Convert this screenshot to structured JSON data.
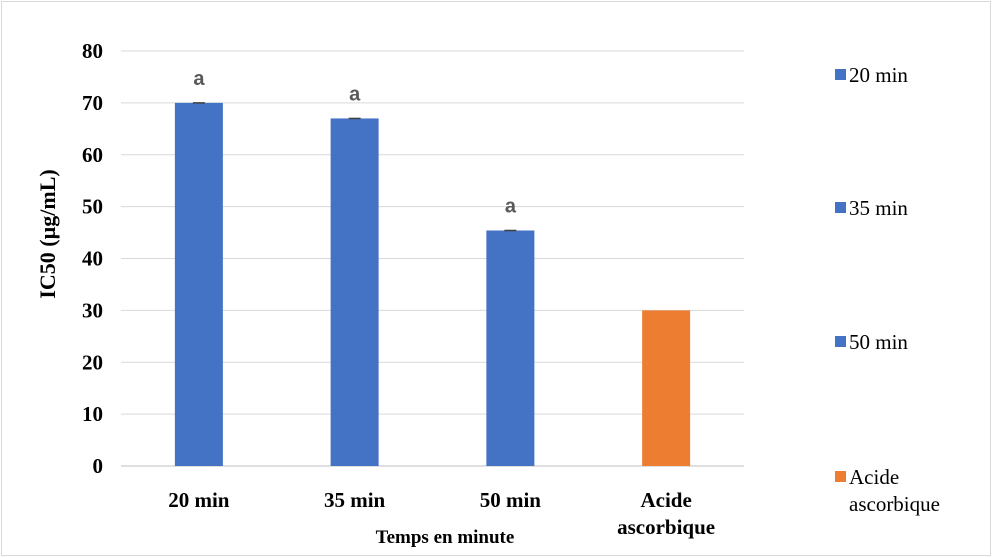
{
  "chart_data": {
    "type": "bar",
    "categories": [
      "20 min",
      "35 min",
      "50 min",
      "Acide ascorbique"
    ],
    "category_lines": [
      [
        "20 min"
      ],
      [
        "35 min"
      ],
      [
        "50 min"
      ],
      [
        "Acide",
        "ascorbique"
      ]
    ],
    "values": [
      70,
      67,
      45.4,
      30
    ],
    "errors": [
      0.1,
      0.1,
      0.1,
      0
    ],
    "bar_colors": [
      "#4472c4",
      "#4472c4",
      "#4472c4",
      "#ed7d31"
    ],
    "annotations": [
      "a",
      "a",
      "a",
      ""
    ],
    "title": "",
    "xlabel": "Temps en minute",
    "ylabel": "IC50 (µg/mL)",
    "ylim": [
      0,
      80
    ],
    "yticks": [
      0,
      10,
      20,
      30,
      40,
      50,
      60,
      70,
      80
    ],
    "grid": true,
    "legend_position": "right",
    "legend": [
      {
        "label": "20 min",
        "lines": [
          "20 min"
        ],
        "color": "#4472c4"
      },
      {
        "label": "35 min",
        "lines": [
          "35 min"
        ],
        "color": "#4472c4"
      },
      {
        "label": "50 min",
        "lines": [
          "50 min"
        ],
        "color": "#4472c4"
      },
      {
        "label": "Acide ascorbique",
        "lines": [
          "Acide",
          "ascorbique"
        ],
        "color": "#ed7d31"
      }
    ]
  }
}
